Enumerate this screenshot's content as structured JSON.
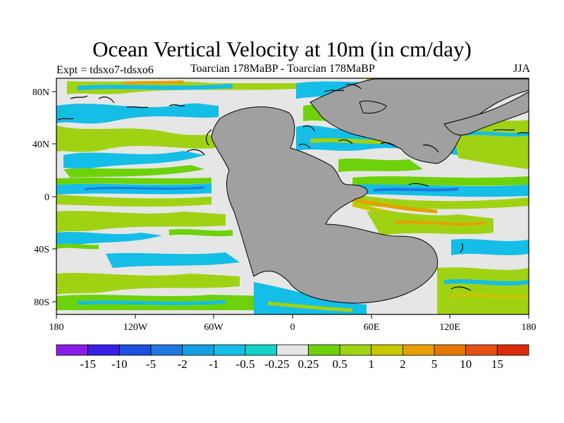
{
  "title": "Ocean Vertical Velocity at 10m (in cm/day)",
  "subtitle_left": "Expt = tdsxo7-tdsxo6",
  "subtitle_center": "Toarcian 178MaBP - Toarcian 178MaBP",
  "subtitle_right": "JJA",
  "chart_data": {
    "type": "heatmap",
    "title": "Ocean Vertical Velocity at 10m (in cm/day)",
    "projection": "cylindrical equidistant",
    "lon_range": [
      -180,
      180
    ],
    "lat_range": [
      -90,
      90
    ],
    "x_ticks": [
      "180",
      "120W",
      "60W",
      "0",
      "60E",
      "120E",
      "180"
    ],
    "y_ticks": [
      "80N",
      "40N",
      "0",
      "40S",
      "80S"
    ],
    "colorbar": {
      "levels": [
        "-15",
        "-10",
        "-5",
        "-2",
        "-1",
        "-0.5",
        "-0.25",
        "0.25",
        "0.5",
        "1",
        "2",
        "5",
        "10",
        "15"
      ],
      "colors": [
        "#8a1ee6",
        "#3a1ee6",
        "#1e4fe0",
        "#1e78e0",
        "#14a0e0",
        "#14bee6",
        "#14d2c8",
        "#e6e6e6",
        "#6ed20a",
        "#a0d214",
        "#c8c800",
        "#e6a000",
        "#e67800",
        "#e65014",
        "#dc2a0a"
      ]
    },
    "land_color": "#a0a0a0",
    "neutral_color": "#e6e6e6"
  }
}
